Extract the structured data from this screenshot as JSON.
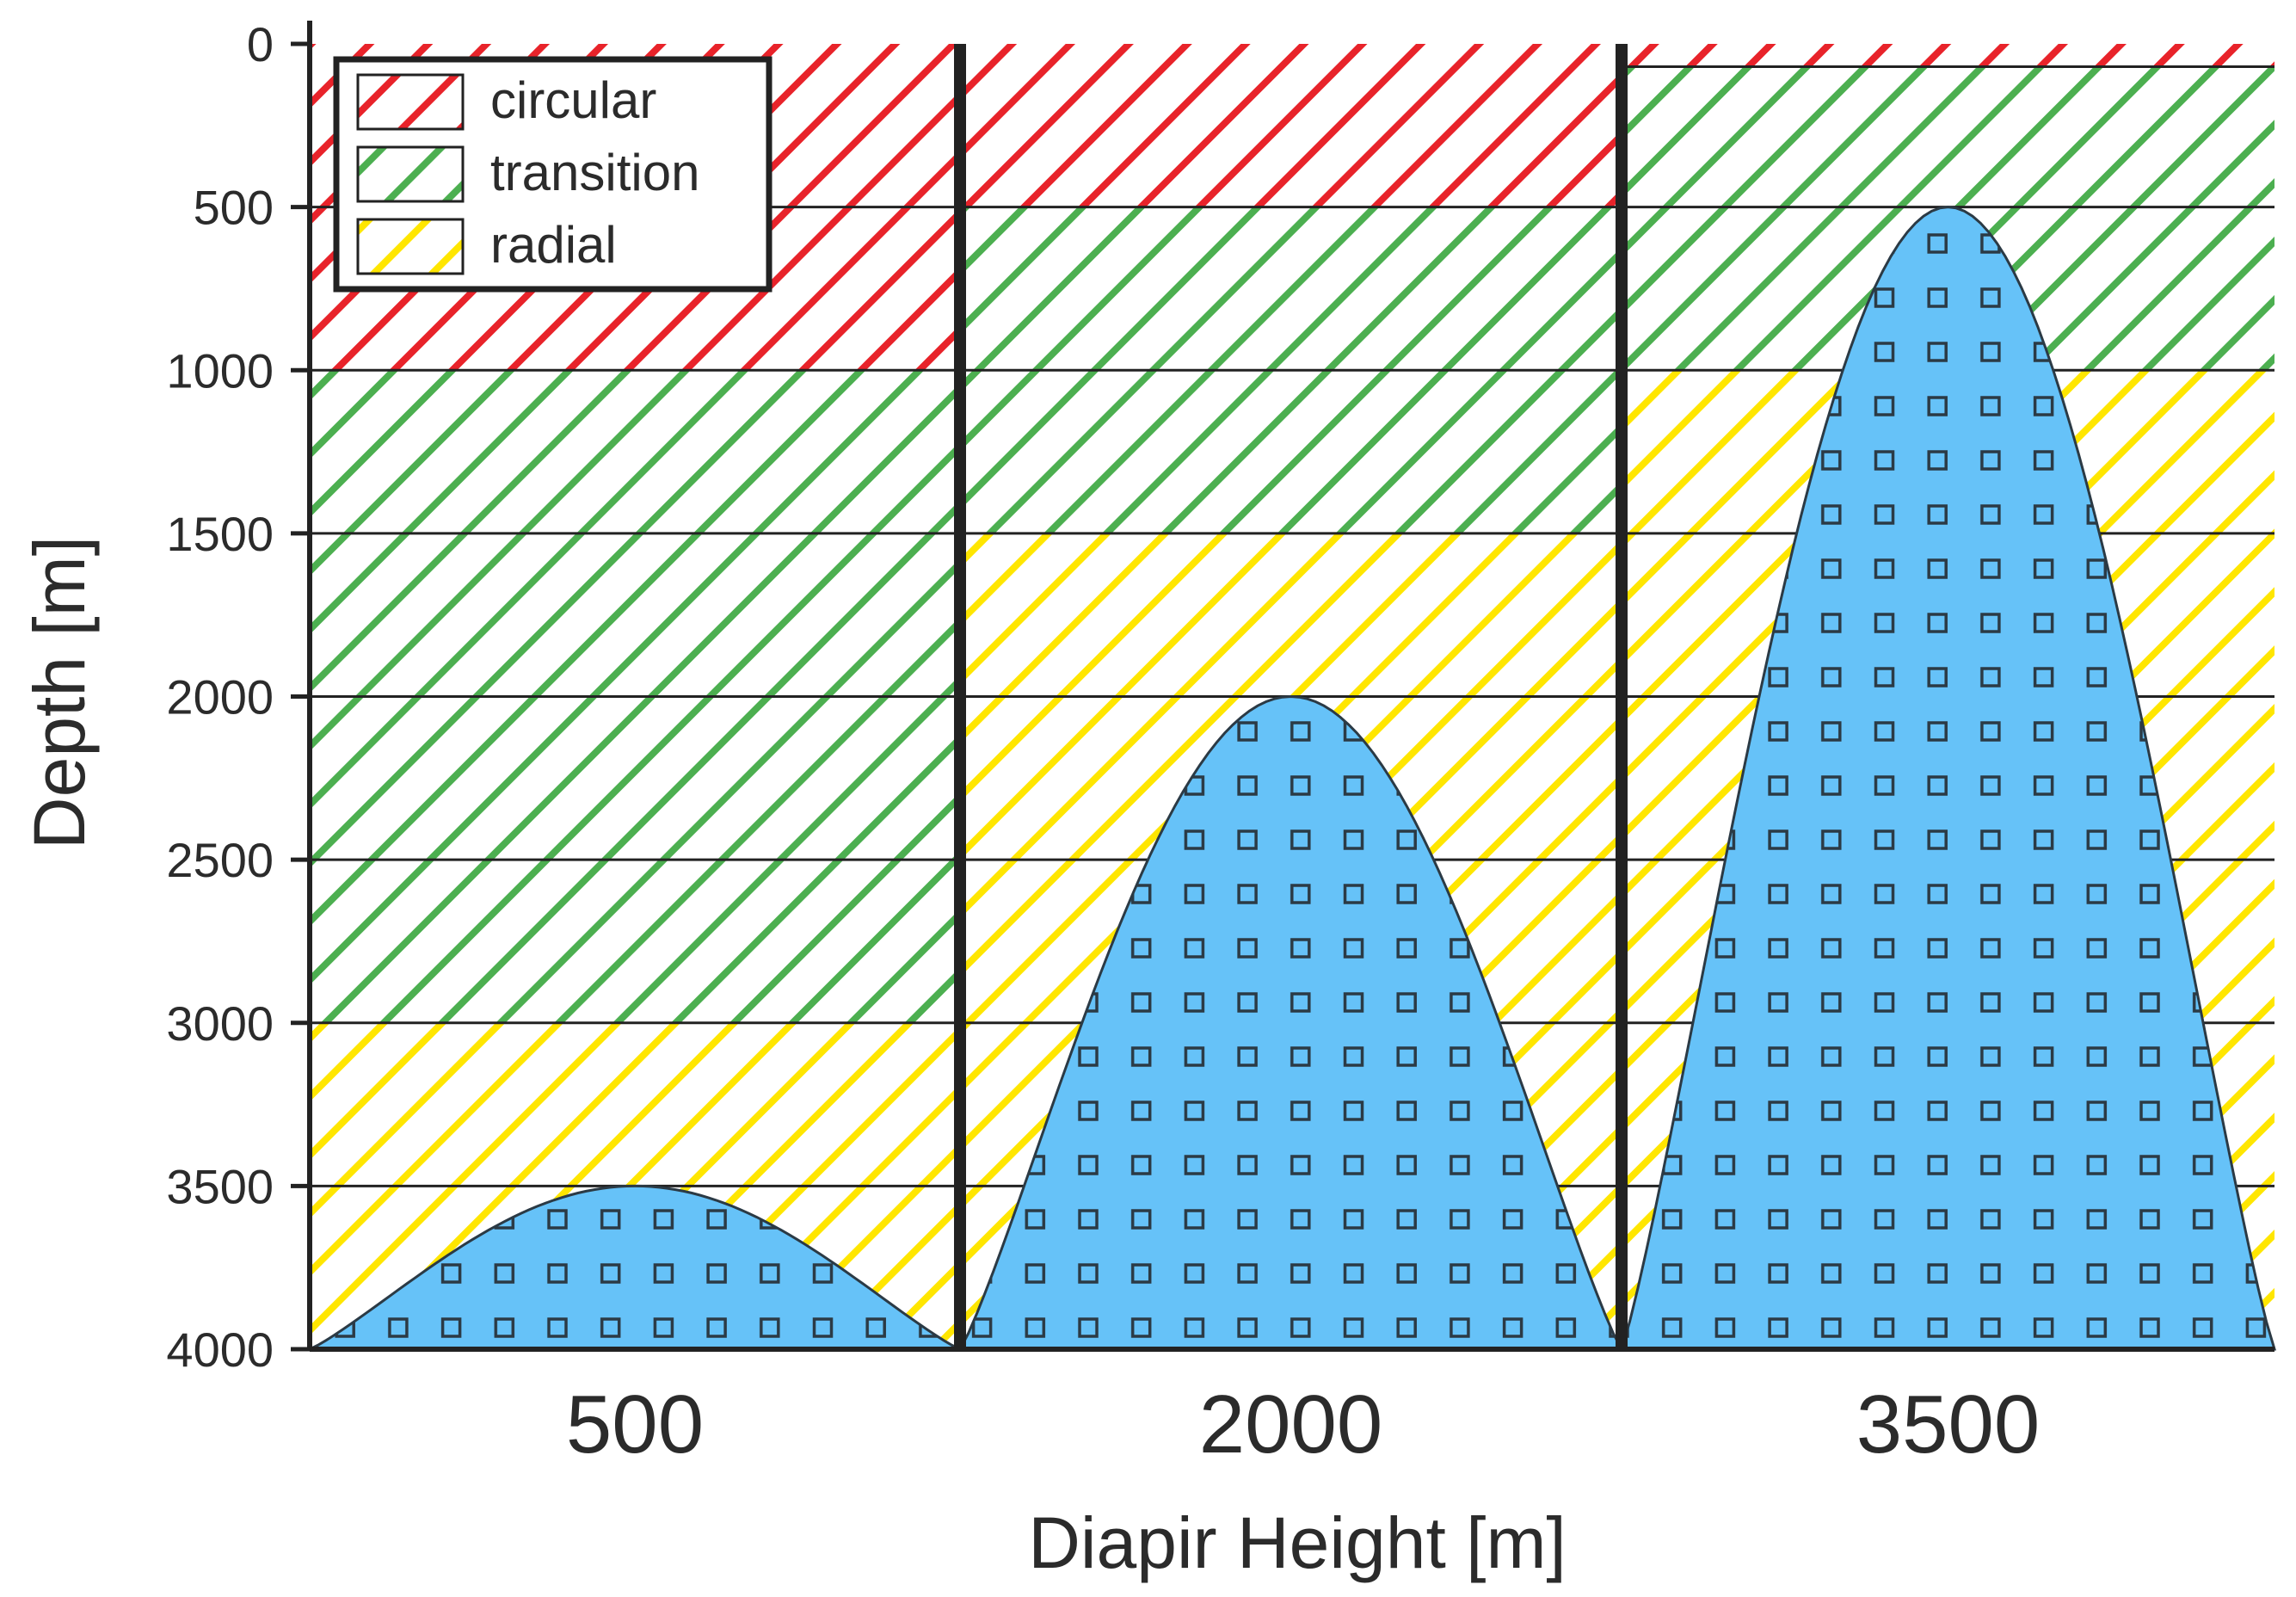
{
  "chart_data": {
    "type": "area",
    "title": "",
    "xlabel": "Diapir Height [m]",
    "ylabel": "Depth [m]",
    "ylim": [
      0,
      4000
    ],
    "yticks": [
      0,
      500,
      1000,
      1500,
      2000,
      2500,
      3000,
      3500,
      4000
    ],
    "categories": [
      "500",
      "2000",
      "3500"
    ],
    "panels": [
      {
        "label": "500",
        "diapir_height": 500,
        "diapir_top_depth": 3500,
        "zones": [
          {
            "type": "circular",
            "from": 0,
            "to": 1000
          },
          {
            "type": "transition",
            "from": 1000,
            "to": 3000
          },
          {
            "type": "radial",
            "from": 3000,
            "to": 4000
          }
        ]
      },
      {
        "label": "2000",
        "diapir_height": 2000,
        "diapir_top_depth": 2000,
        "zones": [
          {
            "type": "circular",
            "from": 0,
            "to": 500
          },
          {
            "type": "transition",
            "from": 500,
            "to": 1500
          },
          {
            "type": "radial",
            "from": 1500,
            "to": 4000
          }
        ]
      },
      {
        "label": "3500",
        "diapir_height": 3500,
        "diapir_top_depth": 500,
        "zones": [
          {
            "type": "circular",
            "from": 0,
            "to": 70
          },
          {
            "type": "transition",
            "from": 70,
            "to": 1000
          },
          {
            "type": "radial",
            "from": 1000,
            "to": 4000
          }
        ]
      }
    ],
    "legend": {
      "position": "top-left",
      "items": [
        {
          "key": "circular",
          "label": "circular",
          "color": "#e8232a"
        },
        {
          "key": "transition",
          "label": "transition",
          "color": "#4caf50"
        },
        {
          "key": "radial",
          "label": "radial",
          "color": "#ffe600"
        }
      ]
    },
    "diapir_color": "#66c2f8",
    "grid": true
  }
}
